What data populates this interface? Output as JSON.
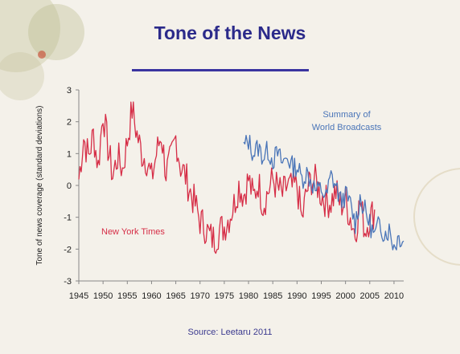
{
  "title": "Tone of the News",
  "source": "Source: Leetaru 2011",
  "colors": {
    "title": "#2b2a8a",
    "nyt": "#d62e47",
    "world": "#4a75b8",
    "background": "#f4f1ea"
  },
  "chart_data": {
    "type": "line",
    "title": "Tone of the News",
    "xlabel": "",
    "ylabel": "Tone of news coverage (standard deviations)",
    "xlim": [
      1945,
      2012
    ],
    "ylim": [
      -3,
      3
    ],
    "grid": false,
    "x_ticks": [
      "1945",
      "1950",
      "1955",
      "1960",
      "1965",
      "1970",
      "1975",
      "1980",
      "1985",
      "1990",
      "1995",
      "2000",
      "2005",
      "2010"
    ],
    "x_tick_values": [
      1945,
      1950,
      1955,
      1960,
      1965,
      1970,
      1975,
      1980,
      1985,
      1990,
      1995,
      2000,
      2005,
      2010
    ],
    "y_ticks": [
      "3",
      "2",
      "1",
      "0",
      "-1",
      "-2",
      "-3"
    ],
    "y_tick_values": [
      3,
      2,
      1,
      0,
      -1,
      -2,
      -3
    ],
    "annotations": [
      {
        "text": "New York Times",
        "series": "New York Times"
      },
      {
        "text": "Summary of",
        "series": "Summary of World Broadcasts"
      },
      {
        "text": "World Broadcasts",
        "series": "Summary of World Broadcasts"
      }
    ],
    "series": [
      {
        "name": "New York Times",
        "color": "#d62e47",
        "x": [
          1945,
          1946,
          1947,
          1948,
          1949,
          1950,
          1951,
          1952,
          1953,
          1954,
          1955,
          1956,
          1957,
          1958,
          1959,
          1960,
          1961,
          1962,
          1963,
          1964,
          1965,
          1966,
          1967,
          1968,
          1969,
          1970,
          1971,
          1972,
          1973,
          1974,
          1975,
          1976,
          1977,
          1978,
          1979,
          1980,
          1981,
          1982,
          1983,
          1984,
          1985,
          1986,
          1987,
          1988,
          1989,
          1990,
          1991,
          1992,
          1993,
          1994,
          1995,
          1996,
          1997,
          1998,
          1999,
          2000,
          2001,
          2002,
          2003,
          2004,
          2005,
          2006
        ],
        "y": [
          0.2,
          1.5,
          0.9,
          1.6,
          0.6,
          2.3,
          1.2,
          0.3,
          0.9,
          0.5,
          1.4,
          2.4,
          1.6,
          1.0,
          0.8,
          0.2,
          1.0,
          1.6,
          0.4,
          0.8,
          1.5,
          0.6,
          0.3,
          -0.2,
          -0.6,
          -1.1,
          -1.3,
          -1.6,
          -1.7,
          -1.4,
          -1.3,
          -1.0,
          -0.6,
          0.0,
          -0.3,
          0.2,
          -0.4,
          0.1,
          -0.6,
          -0.2,
          0.2,
          -0.1,
          -0.3,
          0.0,
          -0.1,
          0.0,
          -1.1,
          -0.2,
          0.2,
          0.1,
          -0.3,
          -0.5,
          -0.5,
          -0.2,
          -0.6,
          -0.5,
          -1.0,
          -1.5,
          -0.5,
          -1.4,
          -1.0,
          -0.8
        ]
      },
      {
        "name": "Summary of World Broadcasts",
        "color": "#4a75b8",
        "x": [
          1979,
          1980,
          1981,
          1982,
          1983,
          1984,
          1985,
          1986,
          1987,
          1988,
          1989,
          1990,
          1991,
          1992,
          1993,
          1994,
          1995,
          1996,
          1997,
          1998,
          1999,
          2000,
          2001,
          2002,
          2003,
          2004,
          2005,
          2006,
          2007,
          2008,
          2009,
          2010,
          2011,
          2012
        ],
        "y": [
          1.2,
          1.4,
          1.0,
          1.2,
          0.9,
          1.1,
          0.8,
          1.0,
          0.7,
          0.9,
          0.6,
          0.6,
          0.2,
          0.4,
          0.1,
          -0.2,
          -0.1,
          -0.4,
          0.3,
          0.0,
          -0.5,
          -0.3,
          -0.6,
          -1.2,
          -0.4,
          -0.8,
          -1.2,
          -1.6,
          -1.2,
          -1.5,
          -1.4,
          -1.9,
          -1.6,
          -1.7
        ]
      }
    ]
  }
}
